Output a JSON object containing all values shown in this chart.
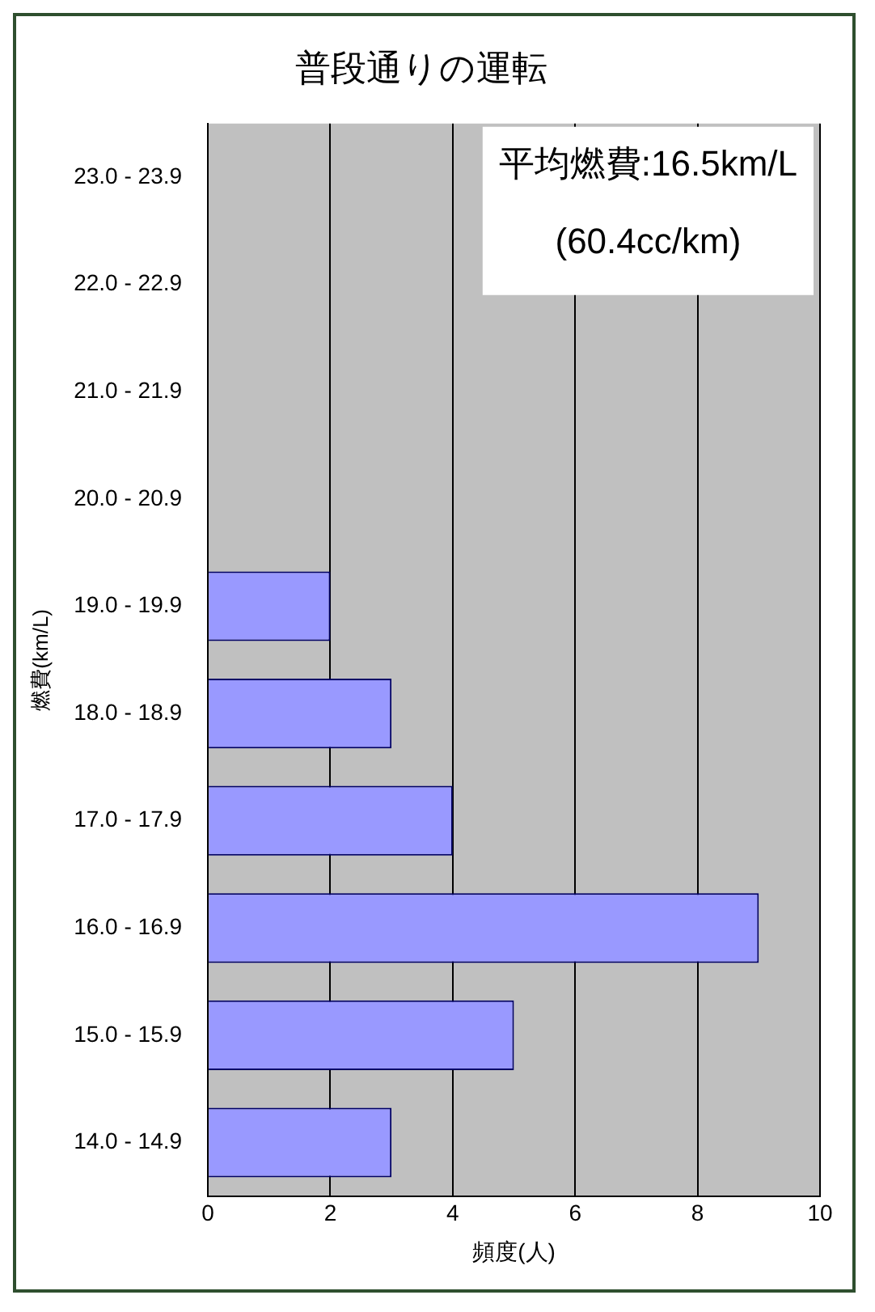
{
  "chart_data": {
    "type": "bar",
    "orientation": "horizontal",
    "title": "普段通りの運転",
    "xlabel": "頻度(人)",
    "ylabel": "燃費(km/L)",
    "categories": [
      "23.0 - 23.9",
      "22.0 - 22.9",
      "21.0 - 21.9",
      "20.0 - 20.9",
      "19.0 - 19.9",
      "18.0 - 18.9",
      "17.0 - 17.9",
      "16.0 - 16.9",
      "15.0 - 15.9",
      "14.0 - 14.9"
    ],
    "values": [
      0,
      0,
      0,
      0,
      2,
      3,
      4,
      9,
      5,
      3
    ],
    "color": "#9999ff",
    "xlim": [
      0,
      10
    ],
    "xticks": [
      0,
      2,
      4,
      6,
      8,
      10
    ],
    "grid": "x",
    "legend": false,
    "annotations": [
      "平均燃費:16.5km/L",
      "(60.4cc/km)"
    ]
  }
}
